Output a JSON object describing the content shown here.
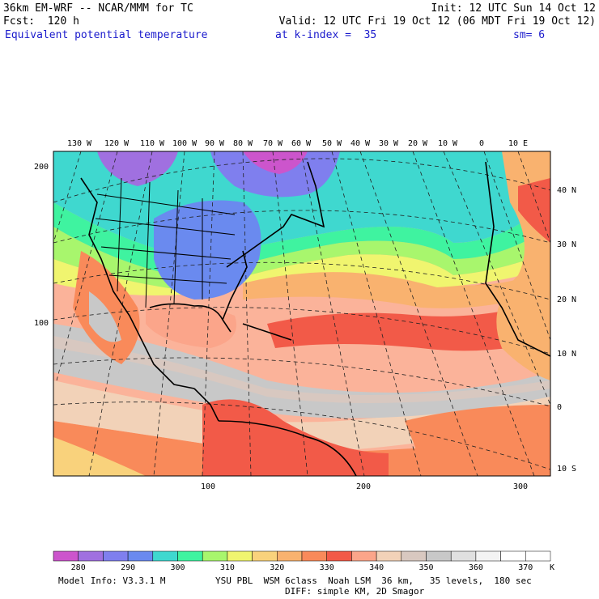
{
  "header": {
    "line1_left": "36km EM-WRF -- NCAR/MMM for TC",
    "line1_right": "Init: 12 UTC Sun 14 Oct 12",
    "line2_left": "Fcst:  120 h",
    "line2_right": "Valid: 12 UTC Fri 19 Oct 12 (06 MDT Fri 19 Oct 12)",
    "field": "Equivalent potential temperature",
    "level": "at k-index =  35",
    "smooth": "sm= 6"
  },
  "map": {
    "top_lon_labels": [
      "130 W",
      "120 W",
      "110 W",
      "100 W",
      "90 W",
      "80 W",
      "70 W",
      "60 W",
      "50 W",
      "40 W",
      "30 W",
      "20 W",
      "10 W",
      "0",
      "10 E"
    ],
    "right_lat_labels": [
      "40 N",
      "30 N",
      "20 N",
      "10 N",
      "0",
      "10 S"
    ],
    "left_grid_labels": [
      "200",
      "100"
    ],
    "bottom_grid_labels": [
      "100",
      "200",
      "300"
    ]
  },
  "colorbar": {
    "labels": [
      "280",
      "290",
      "300",
      "310",
      "320",
      "330",
      "340",
      "350",
      "360",
      "370"
    ],
    "unit": "K",
    "colors": [
      "#cc55cc",
      "#a070e0",
      "#7f7fee",
      "#6a8aef",
      "#3fd8cf",
      "#3ff3a0",
      "#a8f66d",
      "#f0f56f",
      "#f9d27c",
      "#f9b26f",
      "#f98a5a",
      "#f25a48",
      "#fba58a",
      "#f2d2b8",
      "#d8c8c0",
      "#c8c8c8",
      "#e0e0e0",
      "#f3f3f3",
      "#ffffff",
      "#ffffff"
    ]
  },
  "footer": {
    "model_info": "Model Info: V3.3.1 M",
    "physics": "YSU PBL  WSM 6class  Noah LSM  36 km,   35 levels,  180 sec",
    "diffusion": "DIFF: simple KM, 2D Smagor"
  }
}
